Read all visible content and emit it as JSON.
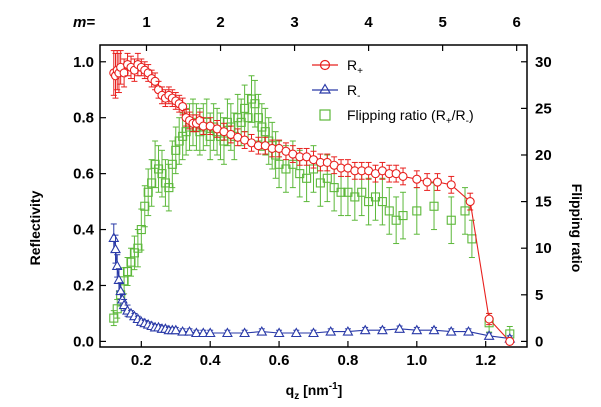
{
  "chart_data": {
    "type": "scatter",
    "xlabel": "q",
    "xlabel_sub": "z",
    "xlabel_unit": " [nm",
    "xlabel_unit_sup": "-1",
    "xlabel_unit_end": "]",
    "ylabel_left": "Reflectivity",
    "ylabel_right": "Flipping ratio",
    "top_axis_prefix": "m=",
    "xlim": [
      0.08,
      1.32
    ],
    "ylim_left": [
      -0.02,
      1.06
    ],
    "ylim_right": [
      -0.6,
      31.8
    ],
    "grid": false,
    "legend_position": "top-right",
    "x_ticks": [
      0.2,
      0.4,
      0.6,
      0.8,
      1.0,
      1.2
    ],
    "x_tick_labels": [
      "0.2",
      "0.4",
      "0.6",
      "0.8",
      "1.0",
      "1.2"
    ],
    "y_left_ticks": [
      0.0,
      0.2,
      0.4,
      0.6,
      0.8,
      1.0
    ],
    "y_left_tick_labels": [
      "0.0",
      "0.2",
      "0.4",
      "0.6",
      "0.8",
      "1.0"
    ],
    "y_right_ticks": [
      0,
      5,
      10,
      15,
      20,
      25,
      30
    ],
    "y_right_tick_labels": [
      "0",
      "5",
      "10",
      "15",
      "20",
      "25",
      "30"
    ],
    "top_ticks": [
      {
        "qz": 0.215,
        "label": "1"
      },
      {
        "qz": 0.43,
        "label": "2"
      },
      {
        "qz": 0.645,
        "label": "3"
      },
      {
        "qz": 0.86,
        "label": "4"
      },
      {
        "qz": 1.075,
        "label": "5"
      },
      {
        "qz": 1.29,
        "label": "6"
      }
    ],
    "series": [
      {
        "name": "R",
        "name_sub": "+",
        "axis": "left",
        "marker": "circle",
        "color": "#e8201e",
        "connected": true,
        "x": [
          0.12,
          0.125,
          0.13,
          0.135,
          0.14,
          0.15,
          0.16,
          0.17,
          0.18,
          0.19,
          0.2,
          0.21,
          0.22,
          0.23,
          0.24,
          0.25,
          0.26,
          0.27,
          0.28,
          0.29,
          0.3,
          0.31,
          0.32,
          0.33,
          0.34,
          0.35,
          0.36,
          0.37,
          0.38,
          0.4,
          0.42,
          0.44,
          0.46,
          0.48,
          0.5,
          0.52,
          0.54,
          0.56,
          0.58,
          0.6,
          0.62,
          0.64,
          0.66,
          0.68,
          0.7,
          0.72,
          0.74,
          0.76,
          0.78,
          0.8,
          0.82,
          0.84,
          0.86,
          0.88,
          0.9,
          0.92,
          0.94,
          0.96,
          1.0,
          1.03,
          1.06,
          1.1,
          1.155,
          1.21,
          1.27
        ],
        "y": [
          0.96,
          0.95,
          0.97,
          0.96,
          0.98,
          0.96,
          0.99,
          0.98,
          0.97,
          0.99,
          0.98,
          0.97,
          0.96,
          0.94,
          0.93,
          0.9,
          0.88,
          0.87,
          0.88,
          0.87,
          0.86,
          0.85,
          0.84,
          0.8,
          0.79,
          0.78,
          0.78,
          0.79,
          0.77,
          0.77,
          0.76,
          0.75,
          0.74,
          0.73,
          0.72,
          0.71,
          0.7,
          0.7,
          0.69,
          0.69,
          0.68,
          0.67,
          0.66,
          0.66,
          0.65,
          0.64,
          0.64,
          0.63,
          0.62,
          0.62,
          0.61,
          0.61,
          0.61,
          0.6,
          0.61,
          0.6,
          0.6,
          0.59,
          0.58,
          0.57,
          0.57,
          0.56,
          0.5,
          0.08,
          0.0
        ],
        "err": [
          0.08,
          0.08,
          0.07,
          0.07,
          0.06,
          0.05,
          0.04,
          0.04,
          0.04,
          0.04,
          0.03,
          0.03,
          0.03,
          0.03,
          0.03,
          0.03,
          0.03,
          0.03,
          0.03,
          0.03,
          0.03,
          0.03,
          0.03,
          0.03,
          0.03,
          0.03,
          0.03,
          0.03,
          0.03,
          0.03,
          0.03,
          0.03,
          0.03,
          0.03,
          0.03,
          0.03,
          0.03,
          0.03,
          0.03,
          0.03,
          0.03,
          0.03,
          0.03,
          0.03,
          0.03,
          0.03,
          0.03,
          0.03,
          0.03,
          0.03,
          0.03,
          0.03,
          0.03,
          0.03,
          0.03,
          0.03,
          0.03,
          0.03,
          0.03,
          0.03,
          0.03,
          0.03,
          0.03,
          0.02,
          0.01
        ]
      },
      {
        "name": "R",
        "name_sub": "-",
        "axis": "left",
        "marker": "triangle",
        "color": "#2a3aa8",
        "connected": true,
        "x": [
          0.12,
          0.125,
          0.13,
          0.135,
          0.14,
          0.145,
          0.15,
          0.16,
          0.17,
          0.18,
          0.19,
          0.2,
          0.21,
          0.22,
          0.23,
          0.24,
          0.25,
          0.26,
          0.27,
          0.28,
          0.29,
          0.3,
          0.32,
          0.34,
          0.36,
          0.38,
          0.4,
          0.45,
          0.5,
          0.55,
          0.6,
          0.65,
          0.7,
          0.75,
          0.8,
          0.85,
          0.9,
          0.95,
          1.0,
          1.05,
          1.1,
          1.15,
          1.21,
          1.27
        ],
        "y": [
          0.37,
          0.33,
          0.27,
          0.22,
          0.18,
          0.15,
          0.13,
          0.11,
          0.1,
          0.09,
          0.08,
          0.07,
          0.065,
          0.06,
          0.055,
          0.05,
          0.05,
          0.045,
          0.045,
          0.04,
          0.04,
          0.04,
          0.035,
          0.035,
          0.03,
          0.03,
          0.03,
          0.03,
          0.03,
          0.035,
          0.03,
          0.03,
          0.03,
          0.035,
          0.035,
          0.04,
          0.04,
          0.045,
          0.04,
          0.04,
          0.035,
          0.035,
          0.02,
          0.01
        ],
        "err": [
          0.05,
          0.05,
          0.04,
          0.04,
          0.03,
          0.02,
          0.02,
          0.02,
          0.01,
          0.01,
          0.01,
          0.01,
          0.01,
          0.01,
          0.01,
          0.01,
          0.01,
          0.01,
          0.01,
          0.01,
          0.01,
          0.01,
          0.01,
          0.01,
          0.01,
          0.01,
          0.01,
          0.01,
          0.01,
          0.01,
          0.01,
          0.01,
          0.01,
          0.01,
          0.01,
          0.01,
          0.01,
          0.01,
          0.01,
          0.01,
          0.01,
          0.01,
          0.01,
          0.01
        ]
      },
      {
        "name": "Flipping ratio (R",
        "name_sub": "+",
        "name_mid": "/R",
        "name_sub2": "-",
        "name_end": ")",
        "axis": "right",
        "marker": "square",
        "color": "#5cb83a",
        "connected": false,
        "x": [
          0.12,
          0.13,
          0.14,
          0.15,
          0.16,
          0.17,
          0.18,
          0.19,
          0.2,
          0.21,
          0.22,
          0.23,
          0.24,
          0.25,
          0.26,
          0.27,
          0.28,
          0.29,
          0.3,
          0.31,
          0.32,
          0.33,
          0.34,
          0.35,
          0.36,
          0.37,
          0.38,
          0.39,
          0.4,
          0.41,
          0.42,
          0.43,
          0.44,
          0.45,
          0.46,
          0.47,
          0.48,
          0.49,
          0.5,
          0.51,
          0.52,
          0.53,
          0.54,
          0.55,
          0.56,
          0.57,
          0.58,
          0.59,
          0.6,
          0.62,
          0.64,
          0.66,
          0.68,
          0.7,
          0.72,
          0.74,
          0.76,
          0.78,
          0.8,
          0.82,
          0.84,
          0.86,
          0.88,
          0.9,
          0.92,
          0.94,
          0.96,
          1.0,
          1.05,
          1.1,
          1.14,
          1.16,
          1.21,
          1.27
        ],
        "y": [
          2.5,
          3.5,
          5.0,
          6.5,
          7.5,
          8.5,
          9.5,
          10.0,
          12.0,
          14.5,
          16.0,
          17.0,
          19.0,
          18.5,
          18.0,
          17.0,
          16.5,
          19.0,
          20.5,
          21.5,
          22.0,
          22.5,
          23.0,
          23.5,
          23.0,
          22.5,
          23.0,
          23.5,
          22.0,
          23.0,
          22.5,
          22.0,
          21.5,
          23.5,
          23.0,
          22.0,
          24.0,
          23.5,
          25.0,
          24.0,
          26.0,
          25.5,
          24.0,
          23.0,
          22.5,
          21.5,
          21.0,
          20.0,
          19.0,
          18.5,
          19.0,
          18.0,
          17.5,
          18.5,
          17.0,
          17.5,
          16.5,
          16.0,
          16.0,
          15.5,
          16.0,
          15.0,
          15.5,
          15.0,
          14.0,
          13.0,
          13.5,
          14.0,
          14.5,
          13.0,
          14.0,
          11.0,
          2.0,
          0.8
        ],
        "err": [
          0.8,
          1.0,
          1.2,
          1.4,
          1.5,
          1.5,
          1.8,
          2.0,
          2.2,
          2.2,
          2.5,
          2.5,
          2.5,
          2.5,
          2.5,
          2.5,
          2.5,
          2.5,
          2.5,
          2.5,
          2.5,
          2.5,
          2.5,
          2.5,
          2.5,
          2.5,
          2.5,
          2.5,
          2.5,
          2.5,
          2.5,
          2.5,
          2.5,
          2.5,
          2.5,
          2.5,
          2.5,
          2.5,
          2.5,
          2.5,
          2.5,
          2.5,
          2.5,
          2.5,
          2.5,
          2.5,
          2.5,
          2.5,
          2.5,
          2.5,
          2.5,
          2.5,
          2.5,
          2.5,
          2.5,
          2.5,
          2.5,
          2.5,
          2.5,
          2.5,
          2.5,
          2.5,
          2.5,
          2.5,
          2.5,
          2.5,
          2.5,
          2.5,
          2.5,
          2.5,
          2.5,
          2.0,
          1.0,
          0.8
        ]
      }
    ]
  }
}
